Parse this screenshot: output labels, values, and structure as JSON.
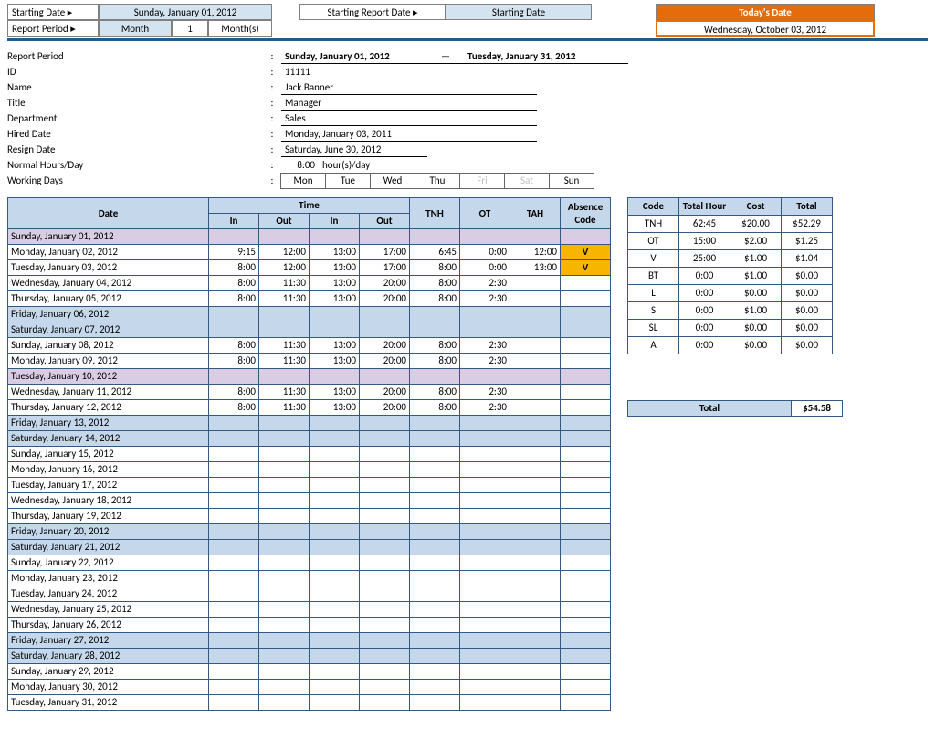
{
  "header": {
    "starting_date_label": "Starting Date ▸",
    "starting_date_value": "Sunday, January 01, 2012",
    "starting_report_label": "Starting Report Date ▸",
    "starting_report_value": "Starting Date",
    "report_period_label": "Report Period ▸",
    "report_period_type": "Month",
    "report_period_num": "1",
    "report_period_unit": "Month(s)",
    "todays_date_label": "Today's Date",
    "todays_date_value": "Wednesday, October 03, 2012"
  },
  "info": {
    "report_period_label": "Report Period",
    "report_period_start": "Sunday, January 01, 2012",
    "report_period_end": "Tuesday, January 31, 2012",
    "id_label": "ID",
    "id": "11111",
    "name_label": "Name",
    "name": "Jack Banner",
    "title_label": "Title",
    "title": "Manager",
    "department_label": "Department",
    "department": "Sales",
    "hired_label": "Hired Date",
    "hired": "Monday, January 03, 2011",
    "resign_label": "Resign Date",
    "resign": "Saturday, June 30, 2012",
    "hours_label": "Normal Hours/Day",
    "hours": "8:00",
    "hours_unit": "hour(s)/day",
    "working_label": "Working Days",
    "days": [
      "Mon",
      "Tue",
      "Wed",
      "Thu",
      "Fri",
      "Sat",
      "Sun"
    ],
    "days_active": [
      true,
      true,
      true,
      true,
      false,
      false,
      true
    ]
  },
  "time_headers": {
    "date": "Date",
    "time": "Time",
    "in": "In",
    "out": "Out",
    "tnh": "TNH",
    "ot": "OT",
    "tah": "TAH",
    "abs": "Absence Code"
  },
  "time_rows": [
    {
      "date": "Sunday, January 01, 2012",
      "style": "special"
    },
    {
      "date": "Monday, January 02, 2012",
      "in1": "9:15",
      "out1": "12:00",
      "in2": "13:00",
      "out2": "17:00",
      "tnh": "6:45",
      "ot": "0:00",
      "tah": "12:00",
      "abs": "V"
    },
    {
      "date": "Tuesday, January 03, 2012",
      "in1": "8:00",
      "out1": "12:00",
      "in2": "13:00",
      "out2": "17:00",
      "tnh": "8:00",
      "ot": "0:00",
      "tah": "13:00",
      "abs": "V"
    },
    {
      "date": "Wednesday, January 04, 2012",
      "in1": "8:00",
      "out1": "11:30",
      "in2": "13:00",
      "out2": "20:00",
      "tnh": "8:00",
      "ot": "2:30"
    },
    {
      "date": "Thursday, January 05, 2012",
      "in1": "8:00",
      "out1": "11:30",
      "in2": "13:00",
      "out2": "20:00",
      "tnh": "8:00",
      "ot": "2:30"
    },
    {
      "date": "Friday, January 06, 2012",
      "style": "weekend"
    },
    {
      "date": "Saturday, January 07, 2012",
      "style": "weekend"
    },
    {
      "date": "Sunday, January 08, 2012",
      "in1": "8:00",
      "out1": "11:30",
      "in2": "13:00",
      "out2": "20:00",
      "tnh": "8:00",
      "ot": "2:30"
    },
    {
      "date": "Monday, January 09, 2012",
      "in1": "8:00",
      "out1": "11:30",
      "in2": "13:00",
      "out2": "20:00",
      "tnh": "8:00",
      "ot": "2:30"
    },
    {
      "date": "Tuesday, January 10, 2012",
      "style": "special"
    },
    {
      "date": "Wednesday, January 11, 2012",
      "in1": "8:00",
      "out1": "11:30",
      "in2": "13:00",
      "out2": "20:00",
      "tnh": "8:00",
      "ot": "2:30"
    },
    {
      "date": "Thursday, January 12, 2012",
      "in1": "8:00",
      "out1": "11:30",
      "in2": "13:00",
      "out2": "20:00",
      "tnh": "8:00",
      "ot": "2:30"
    },
    {
      "date": "Friday, January 13, 2012",
      "style": "weekend"
    },
    {
      "date": "Saturday, January 14, 2012",
      "style": "weekend"
    },
    {
      "date": "Sunday, January 15, 2012"
    },
    {
      "date": "Monday, January 16, 2012"
    },
    {
      "date": "Tuesday, January 17, 2012"
    },
    {
      "date": "Wednesday, January 18, 2012"
    },
    {
      "date": "Thursday, January 19, 2012"
    },
    {
      "date": "Friday, January 20, 2012",
      "style": "weekend"
    },
    {
      "date": "Saturday, January 21, 2012",
      "style": "weekend"
    },
    {
      "date": "Sunday, January 22, 2012"
    },
    {
      "date": "Monday, January 23, 2012"
    },
    {
      "date": "Tuesday, January 24, 2012"
    },
    {
      "date": "Wednesday, January 25, 2012"
    },
    {
      "date": "Thursday, January 26, 2012"
    },
    {
      "date": "Friday, January 27, 2012",
      "style": "weekend"
    },
    {
      "date": "Saturday, January 28, 2012",
      "style": "weekend"
    },
    {
      "date": "Sunday, January 29, 2012"
    },
    {
      "date": "Monday, January 30, 2012"
    },
    {
      "date": "Tuesday, January 31, 2012"
    }
  ],
  "summary_headers": {
    "code": "Code",
    "hour": "Total Hour",
    "cost": "Cost",
    "total": "Total"
  },
  "summary_rows": [
    {
      "code": "TNH",
      "hour": "62:45",
      "cost": "$20.00",
      "total": "$52.29"
    },
    {
      "code": "OT",
      "hour": "15:00",
      "cost": "$2.00",
      "total": "$1.25"
    },
    {
      "code": "V",
      "hour": "25:00",
      "cost": "$1.00",
      "total": "$1.04"
    },
    {
      "code": "BT",
      "hour": "0:00",
      "cost": "$1.00",
      "total": "$0.00"
    },
    {
      "code": "L",
      "hour": "0:00",
      "cost": "$0.00",
      "total": "$0.00"
    },
    {
      "code": "S",
      "hour": "0:00",
      "cost": "$1.00",
      "total": "$0.00"
    },
    {
      "code": "SL",
      "hour": "0:00",
      "cost": "$0.00",
      "total": "$0.00"
    },
    {
      "code": "A",
      "hour": "0:00",
      "cost": "$0.00",
      "total": "$0.00"
    }
  ],
  "grand_total": {
    "label": "Total",
    "value": "$54.58"
  },
  "colors": {
    "header_blue": "#c4d7eb",
    "border_blue": "#335980",
    "orange": "#e46c0a",
    "absence": "#f7b500",
    "special": "#d9cde4",
    "divider": "#1f5d8b"
  }
}
